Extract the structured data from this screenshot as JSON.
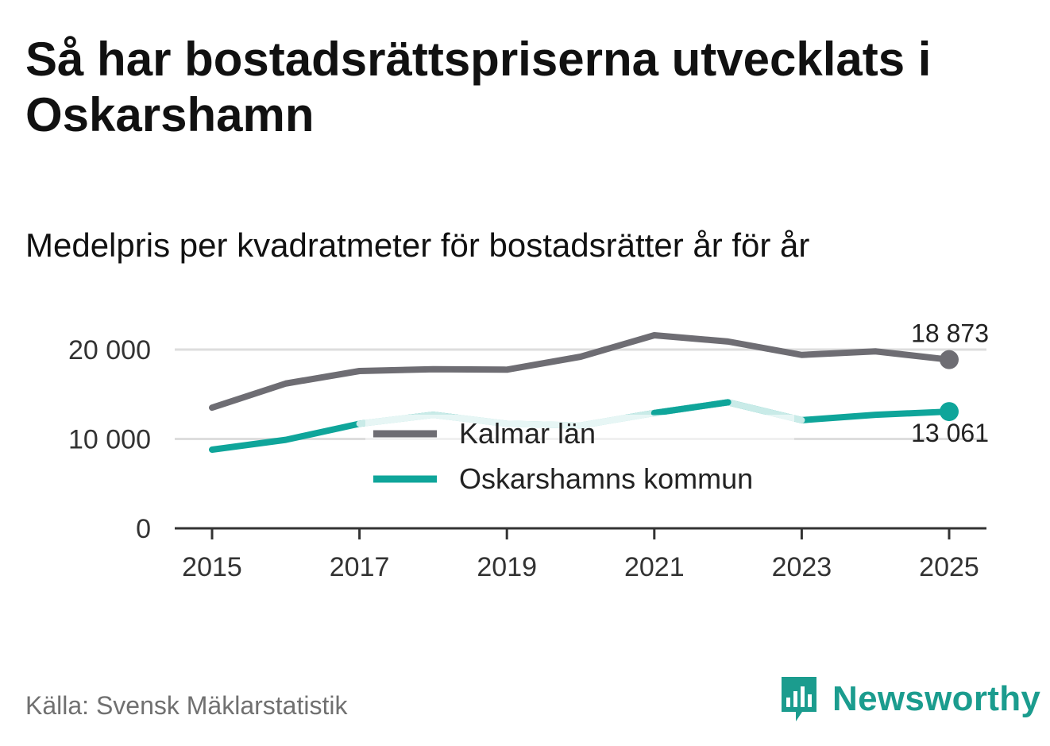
{
  "header": {
    "title": "Så har bostadsrättspriserna utvecklats i Oskarshamn",
    "subtitle": "Medelpris per kvadratmeter för bostadsrätter år för år"
  },
  "footer": {
    "source": "Källa: Svensk Mäklarstatistik",
    "brand": "Newsworthy"
  },
  "colors": {
    "kalmar": "#6e6d73",
    "oskarshamn": "#0fa59a",
    "oskarshamn_light": "#c9ebe8",
    "grid": "#dddddd",
    "axis": "#333333",
    "brand": "#1b9c8e"
  },
  "chart_data": {
    "type": "line",
    "title": "Så har bostadsrättspriserna utvecklats i Oskarshamn",
    "subtitle": "Medelpris per kvadratmeter för bostadsrätter år för år",
    "xlabel": "",
    "ylabel": "",
    "x": [
      2015,
      2016,
      2017,
      2018,
      2019,
      2020,
      2021,
      2022,
      2023,
      2024,
      2025
    ],
    "xticks": [
      2015,
      2017,
      2019,
      2021,
      2023,
      2025
    ],
    "xtick_labels": [
      "2015",
      "2017",
      "2019",
      "2021",
      "2023",
      "2025"
    ],
    "ylim": [
      0,
      20000
    ],
    "yticks": [
      0,
      10000,
      20000
    ],
    "ytick_labels": [
      "0",
      "10 000",
      "20 000"
    ],
    "grid": true,
    "legend_position": "center",
    "series": [
      {
        "name": "Kalmar län",
        "values": [
          13500,
          16200,
          17600,
          17800,
          17750,
          19200,
          21600,
          20900,
          19400,
          19800,
          18873
        ],
        "end_label": "18 873"
      },
      {
        "name": "Oskarshamns kommun",
        "values": [
          8800,
          9900,
          11700,
          12700,
          11700,
          11500,
          12900,
          14100,
          12100,
          12700,
          13061
        ],
        "end_label": "13 061"
      }
    ]
  }
}
